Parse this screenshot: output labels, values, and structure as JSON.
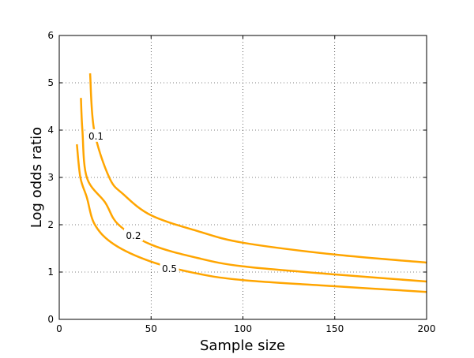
{
  "chart_data": {
    "type": "line",
    "title": "",
    "xlabel": "Sample size",
    "ylabel": "Log odds ratio",
    "xlim": [
      0,
      200
    ],
    "ylim": [
      0,
      6
    ],
    "xticks": [
      0,
      50,
      100,
      150,
      200
    ],
    "yticks": [
      0,
      1,
      2,
      3,
      4,
      5,
      6
    ],
    "grid": true,
    "line_color": "#ffa500",
    "series": [
      {
        "name": "0.1",
        "label_at": [
          20,
          3.87
        ],
        "x": [
          16.8,
          19,
          27.2,
          35,
          50,
          75,
          100,
          150,
          200
        ],
        "y": [
          5.2,
          4.0,
          3.0,
          2.64,
          2.2,
          1.87,
          1.62,
          1.37,
          1.2
        ]
      },
      {
        "name": "0.2",
        "label_at": [
          40.4,
          1.77
        ],
        "x": [
          11.8,
          12.6,
          15,
          25,
          32.3,
          50,
          75,
          100,
          150,
          200
        ],
        "y": [
          4.68,
          4.0,
          3.0,
          2.47,
          2.0,
          1.58,
          1.3,
          1.12,
          0.95,
          0.8
        ]
      },
      {
        "name": "0.5",
        "label_at": [
          60,
          1.07
        ],
        "x": [
          9.6,
          11.5,
          15,
          19.4,
          30,
          50,
          75,
          100,
          150,
          200
        ],
        "y": [
          3.7,
          3.0,
          2.58,
          2.0,
          1.58,
          1.22,
          0.97,
          0.83,
          0.7,
          0.58
        ]
      }
    ]
  }
}
